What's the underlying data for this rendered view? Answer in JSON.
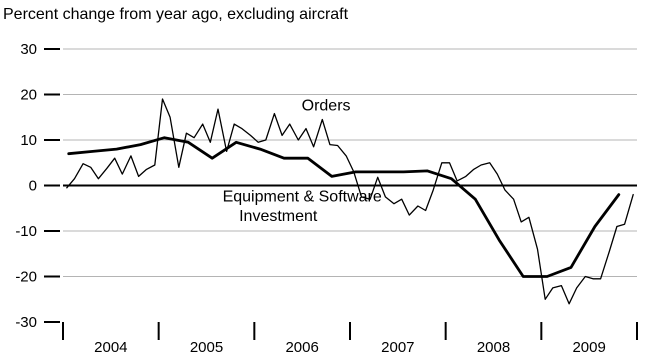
{
  "chart_data": {
    "type": "line",
    "subtitle": "Percent change from year ago, excluding aircraft",
    "ylim": [
      -30,
      30
    ],
    "yticks": [
      30,
      20,
      10,
      0,
      -10,
      -20,
      -30
    ],
    "ytick_labels": [
      "30",
      "20",
      "10",
      "0",
      "-10",
      "-20",
      "-30"
    ],
    "xlim": [
      2004.0,
      2010.0
    ],
    "xticks": [
      2004,
      2005,
      2006,
      2007,
      2008,
      2009,
      2010
    ],
    "year_labels": [
      "2004",
      "2005",
      "2006",
      "2007",
      "2008",
      "2009"
    ],
    "grid": "horizontal",
    "series": [
      {
        "name": "Orders",
        "x": [
          2004.04,
          2004.12,
          2004.21,
          2004.29,
          2004.37,
          2004.46,
          2004.54,
          2004.62,
          2004.71,
          2004.79,
          2004.87,
          2004.96,
          2005.04,
          2005.12,
          2005.21,
          2005.29,
          2005.37,
          2005.46,
          2005.54,
          2005.62,
          2005.71,
          2005.79,
          2005.87,
          2005.96,
          2006.04,
          2006.12,
          2006.21,
          2006.29,
          2006.37,
          2006.46,
          2006.54,
          2006.62,
          2006.71,
          2006.79,
          2006.87,
          2006.96,
          2007.04,
          2007.12,
          2007.21,
          2007.29,
          2007.37,
          2007.46,
          2007.54,
          2007.62,
          2007.71,
          2007.79,
          2007.87,
          2007.96,
          2008.04,
          2008.12,
          2008.21,
          2008.29,
          2008.37,
          2008.46,
          2008.54,
          2008.62,
          2008.71,
          2008.79,
          2008.87,
          2008.96,
          2009.04,
          2009.12,
          2009.21,
          2009.29,
          2009.37,
          2009.46,
          2009.54,
          2009.62,
          2009.71,
          2009.79,
          2009.87,
          2009.96
        ],
        "values": [
          -0.5,
          1.5,
          4.8,
          4.0,
          1.5,
          3.8,
          6.0,
          2.5,
          6.5,
          2.0,
          3.5,
          4.5,
          19.0,
          15.0,
          4.0,
          11.5,
          10.5,
          13.5,
          9.5,
          16.8,
          7.5,
          13.5,
          12.5,
          11.0,
          9.5,
          10.0,
          15.8,
          11.0,
          13.5,
          10.0,
          12.5,
          8.5,
          14.5,
          9.0,
          8.8,
          6.5,
          3.0,
          -2.5,
          -3.0,
          1.8,
          -2.5,
          -4.0,
          -3.0,
          -6.5,
          -4.5,
          -5.5,
          -1.0,
          5.0,
          5.0,
          1.0,
          2.0,
          3.5,
          4.5,
          5.0,
          2.5,
          -1.0,
          -3.0,
          -8.0,
          -7.0,
          -14.0,
          -25.0,
          -22.5,
          -22.0,
          -26.0,
          -22.5,
          -20.0,
          -20.5,
          -20.5,
          -14.5,
          -9.0,
          -8.5,
          -2.0
        ]
      },
      {
        "name": "Equipment & Software Investment",
        "x": [
          2004.06,
          2004.31,
          2004.56,
          2004.81,
          2005.06,
          2005.31,
          2005.56,
          2005.81,
          2006.06,
          2006.31,
          2006.56,
          2006.81,
          2007.06,
          2007.31,
          2007.56,
          2007.81,
          2008.06,
          2008.31,
          2008.56,
          2008.81,
          2009.06,
          2009.31,
          2009.56,
          2009.81
        ],
        "values": [
          7.0,
          7.5,
          8.0,
          9.0,
          10.5,
          9.5,
          6.0,
          9.5,
          8.0,
          6.0,
          6.0,
          2.0,
          3.0,
          3.0,
          3.0,
          3.2,
          1.5,
          -3.0,
          -12.0,
          -20.0,
          -20.0,
          -18.0,
          -9.0,
          -2.0
        ]
      }
    ],
    "annotations": [
      {
        "text": "Orders",
        "x": 2006.75,
        "y": 16.5
      },
      {
        "text": "Equipment & Software",
        "x": 2006.5,
        "y": -3.5
      },
      {
        "text": "Investment",
        "x": 2006.25,
        "y": -7.8
      }
    ]
  }
}
